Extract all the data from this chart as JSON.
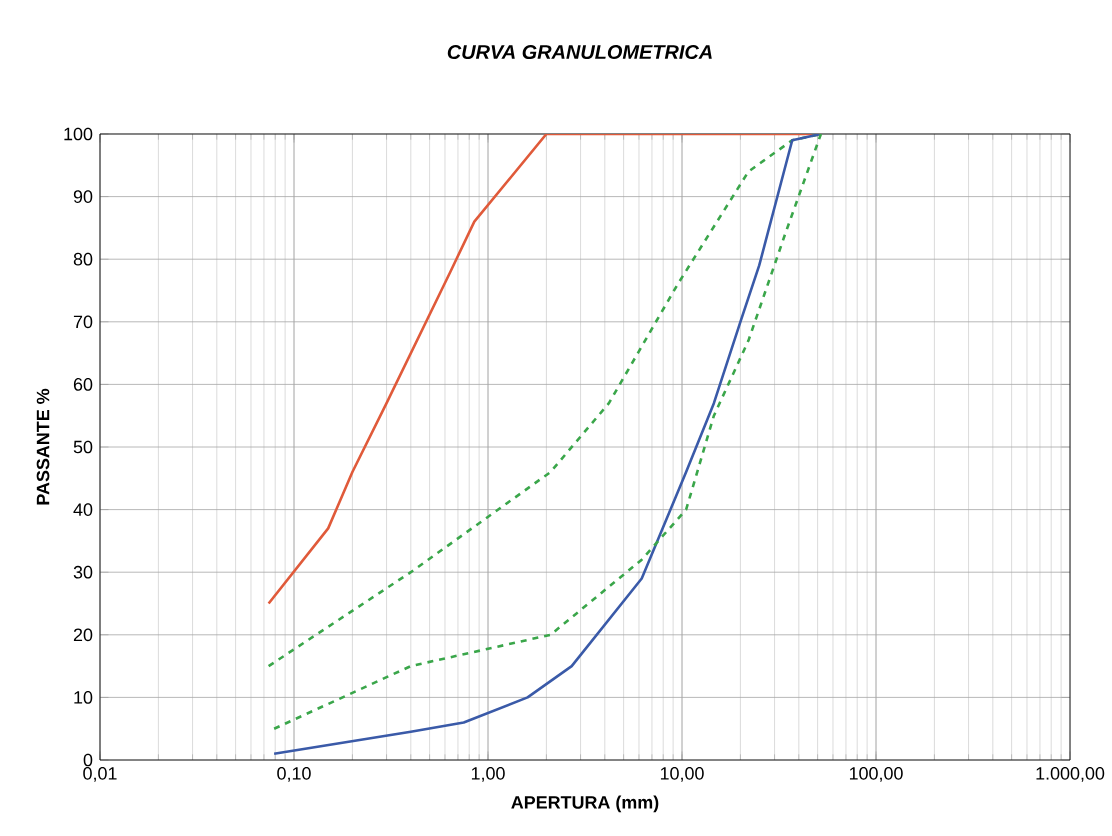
{
  "chart_data": {
    "type": "line",
    "title": "CURVA GRANULOMETRICA",
    "xlabel": "APERTURA (mm)",
    "ylabel": "PASSANTE %",
    "log": "x",
    "grid": true,
    "marker": "none",
    "xlim": [
      0.01,
      1000
    ],
    "ylim": [
      0,
      100
    ],
    "xticks": [
      {
        "value": 0.01,
        "label": "0,01"
      },
      {
        "value": 0.1,
        "label": "0,10"
      },
      {
        "value": 1,
        "label": "1,00"
      },
      {
        "value": 10,
        "label": "10,00"
      },
      {
        "value": 100,
        "label": "100,00"
      },
      {
        "value": 1000,
        "label": "1.000,00"
      }
    ],
    "yticks": [
      0,
      10,
      20,
      30,
      40,
      50,
      60,
      70,
      80,
      90,
      100
    ],
    "series": [
      {
        "color": "#e05a3a",
        "line_style": "solid",
        "x": [
          0.074,
          0.15,
          0.2,
          0.3,
          0.64,
          0.85,
          2.0,
          52
        ],
        "values": [
          25,
          37,
          46,
          57,
          78,
          86,
          100,
          100
        ]
      },
      {
        "color": "#3aa64a",
        "line_style": "dashed",
        "x": [
          0.074,
          0.4,
          2.1,
          4.2,
          9.5,
          22,
          37,
          52
        ],
        "values": [
          15,
          30,
          46,
          57,
          76,
          94,
          99,
          100
        ]
      },
      {
        "color": "#3a5aa8",
        "line_style": "solid",
        "x": [
          0.079,
          0.4,
          0.75,
          1.6,
          2.7,
          6.2,
          10.5,
          14.6,
          20,
          25,
          37,
          52
        ],
        "values": [
          1,
          4.5,
          6,
          10,
          15,
          29,
          46,
          57,
          70,
          79,
          99,
          100
        ]
      },
      {
        "color": "#3aa64a",
        "line_style": "dashed",
        "x": [
          0.079,
          0.4,
          2.1,
          6.2,
          10.5,
          14.6,
          22,
          34,
          52
        ],
        "values": [
          5,
          15,
          20,
          32,
          40,
          55,
          67,
          84,
          100
        ]
      }
    ]
  }
}
